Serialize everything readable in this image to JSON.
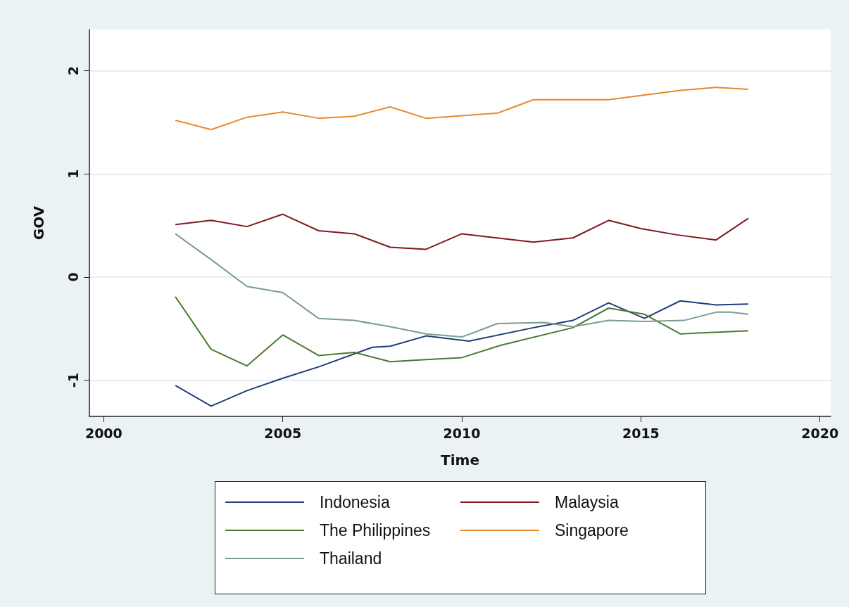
{
  "chart_data": {
    "type": "line",
    "xlabel": "Time",
    "ylabel": "GOV",
    "xlim": [
      1999.6,
      2020.3
    ],
    "xticks": [
      2000,
      2005,
      2010,
      2015,
      2020
    ],
    "ylim": [
      -1.35,
      2.4
    ],
    "yticks": [
      -1,
      0,
      1,
      2
    ],
    "grid": "y",
    "legend": "bottom",
    "marker": "none",
    "line_style": "solid",
    "series": [
      {
        "name": "Indonesia",
        "color": "#1f3d7a",
        "x": [
          2002,
          2003,
          2004,
          2005,
          2006,
          2007.5,
          2008,
          2009,
          2010.2,
          2012,
          2013.1,
          2014.1,
          2015.1,
          2016.1,
          2017.1,
          2018
        ],
        "values": [
          -1.05,
          -1.25,
          -1.1,
          -0.98,
          -0.87,
          -0.68,
          -0.67,
          -0.57,
          -0.62,
          -0.49,
          -0.42,
          -0.25,
          -0.4,
          -0.23,
          -0.27,
          -0.26
        ]
      },
      {
        "name": "Malaysia",
        "color": "#7f1820",
        "x": [
          2002,
          2003,
          2004,
          2005,
          2006,
          2007,
          2008,
          2009,
          2010,
          2012,
          2013.1,
          2014.1,
          2015,
          2016,
          2017.1,
          2018
        ],
        "values": [
          0.51,
          0.55,
          0.49,
          0.61,
          0.45,
          0.42,
          0.29,
          0.27,
          0.42,
          0.34,
          0.38,
          0.55,
          0.47,
          0.41,
          0.36,
          0.57
        ]
      },
      {
        "name": "The Philippines",
        "color": "#4a7a32",
        "x": [
          2002,
          2003,
          2004,
          2005,
          2006,
          2007,
          2008,
          2009,
          2010,
          2011.1,
          2013.1,
          2014.1,
          2015.1,
          2016.1,
          2018
        ],
        "values": [
          -0.19,
          -0.7,
          -0.86,
          -0.56,
          -0.76,
          -0.73,
          -0.82,
          -0.8,
          -0.78,
          -0.66,
          -0.49,
          -0.3,
          -0.36,
          -0.55,
          -0.52
        ]
      },
      {
        "name": "Singapore",
        "color": "#e8892e",
        "x": [
          2002,
          2003,
          2004,
          2005,
          2006,
          2007,
          2008,
          2009,
          2011,
          2012,
          2014.1,
          2016.1,
          2017.1,
          2018
        ],
        "values": [
          1.52,
          1.43,
          1.55,
          1.6,
          1.54,
          1.56,
          1.65,
          1.54,
          1.59,
          1.72,
          1.72,
          1.81,
          1.84,
          1.82
        ]
      },
      {
        "name": "Thailand",
        "color": "#7a9c90",
        "x": [
          2002,
          2003,
          2004,
          2005,
          2006,
          2007,
          2008,
          2009,
          2010,
          2011,
          2012.3,
          2013.1,
          2014.1,
          2015.1,
          2016.2,
          2017.1,
          2017.5,
          2018
        ],
        "values": [
          0.42,
          0.17,
          -0.09,
          -0.15,
          -0.4,
          -0.42,
          -0.48,
          -0.55,
          -0.58,
          -0.45,
          -0.44,
          -0.48,
          -0.42,
          -0.43,
          -0.42,
          -0.34,
          -0.34,
          -0.36
        ]
      }
    ]
  }
}
